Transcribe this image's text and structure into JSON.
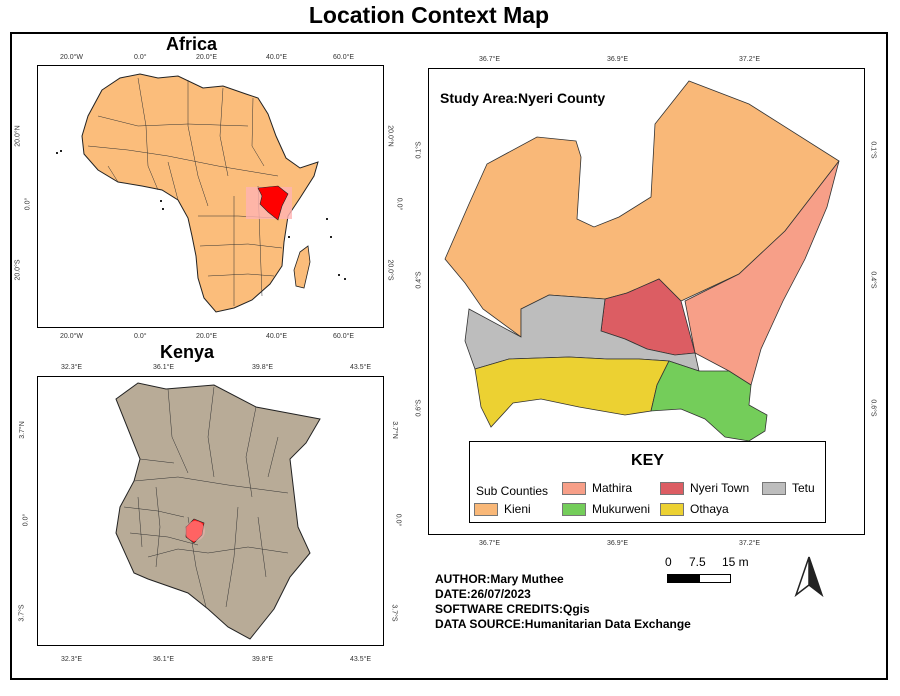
{
  "title": "Location Context Map",
  "africa": {
    "title": "Africa",
    "top_ticks": [
      "20.0°W",
      "0.0°",
      "20.0°E",
      "40.0°E",
      "60.0°E"
    ],
    "bottom_ticks": [
      "20.0°W",
      "0.0°",
      "20.0°E",
      "40.0°E",
      "60.0°E"
    ],
    "left_ticks": [
      "20.0°N",
      "0.0°",
      "20.0°S"
    ],
    "right_ticks": [
      "20.0°N",
      "0.0°",
      "20.0°S"
    ]
  },
  "kenya": {
    "title": "Kenya",
    "top_ticks": [
      "32.3°E",
      "36.1°E",
      "39.8°E",
      "43.5°E"
    ],
    "bottom_ticks": [
      "32.3°E",
      "36.1°E",
      "39.8°E",
      "43.5°E"
    ],
    "left_ticks": [
      "3.7°N",
      "0.0°",
      "3.7°S"
    ],
    "right_ticks": [
      "3.7°N",
      "0.0°",
      "3.7°S"
    ]
  },
  "study": {
    "label": "Study Area:Nyeri County",
    "top_ticks": [
      "36.7°E",
      "36.9°E",
      "37.2°E"
    ],
    "bottom_ticks": [
      "36.7°E",
      "36.9°E",
      "37.2°E"
    ],
    "left_ticks": [
      "0.1°S",
      "0.4°S",
      "0.6°S"
    ],
    "right_ticks": [
      "0.1°S",
      "0.4°S",
      "0.6°S"
    ]
  },
  "key": {
    "title": "KEY",
    "heading": "Sub Counties",
    "items": [
      {
        "label": "Mathira",
        "color": "#f79f88"
      },
      {
        "label": "Nyeri Town",
        "color": "#dc5d63"
      },
      {
        "label": "Tetu",
        "color": "#bdbdbd"
      },
      {
        "label": "Kieni",
        "color": "#f9b878"
      },
      {
        "label": "Mukurweni",
        "color": "#74cd5a"
      },
      {
        "label": "Othaya",
        "color": "#ecd132"
      }
    ]
  },
  "colors": {
    "africa_fill": "#fbbd7b",
    "kenya_fill": "#b8ab97",
    "highlight": "#ff0000",
    "highlight_soft": "#ffb3b3"
  },
  "scale": {
    "labels": [
      "0",
      "7.5",
      "15 m"
    ]
  },
  "info": {
    "author": "AUTHOR:Mary Muthee",
    "date": "DATE:26/07/2023",
    "software": "SOFTWARE CREDITS:Qgis",
    "source": "DATA SOURCE:Humanitarian Data Exchange"
  },
  "north_arrow_icon": "north-arrow-icon"
}
